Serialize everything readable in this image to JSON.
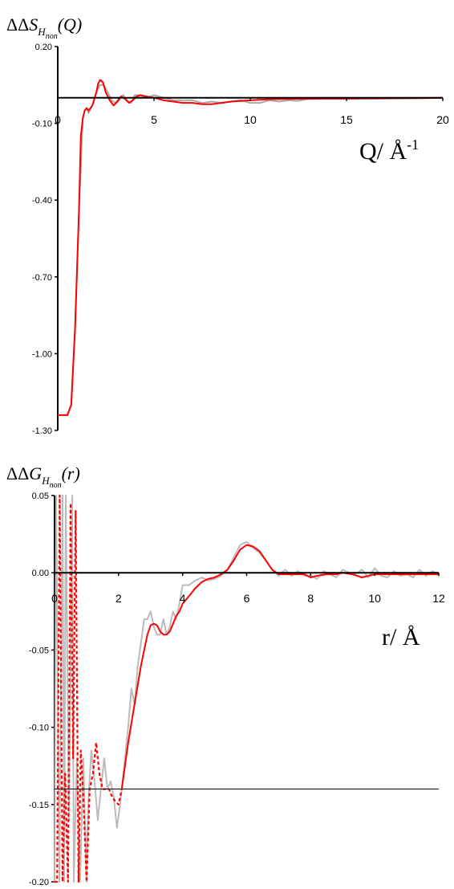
{
  "chart_data": [
    {
      "type": "line",
      "ylabel": {
        "delta": "ΔΔ",
        "symbol": "S",
        "sub": "H",
        "subsub": "non",
        "arg": "(Q)"
      },
      "xlabel": {
        "main": "Q/ Å",
        "sup": "-1"
      },
      "xlim": [
        0,
        20
      ],
      "ylim": [
        -1.3,
        0.2
      ],
      "xticks": [
        0,
        5,
        10,
        15,
        20
      ],
      "xtick_labels": [
        "0",
        "5",
        "10",
        "15",
        "20"
      ],
      "yticks": [
        0.2,
        -0.1,
        -0.4,
        -0.7,
        -1.0,
        -1.3
      ],
      "ytick_labels": [
        "0.20",
        "-0.10",
        "-0.40",
        "-0.70",
        "-1.00",
        "-1.30"
      ],
      "reference_line_y": 0.0,
      "series": [
        {
          "color": "#aaaaaa",
          "style": "solid",
          "x": [
            0,
            0.5,
            0.7,
            0.9,
            1.1,
            1.3,
            1.4,
            1.5,
            1.6,
            1.8,
            2.0,
            2.2,
            2.4,
            2.6,
            2.8,
            3.0,
            3.2,
            3.4,
            3.6,
            3.8,
            4.0,
            4.3,
            4.6,
            5.0,
            5.5,
            6.0,
            6.5,
            7.0,
            7.5,
            8.0,
            8.5,
            9.0,
            9.5,
            10.0,
            10.5,
            11.0,
            11.5,
            12.0,
            12.5,
            13.0,
            14.0,
            15.0,
            16.0,
            17.0,
            18.0,
            19.0,
            20.0
          ],
          "y": [
            -1.24,
            -1.24,
            -1.2,
            -0.9,
            -0.45,
            -0.08,
            -0.05,
            -0.04,
            -0.06,
            -0.03,
            0.02,
            0.05,
            0.05,
            0.02,
            -0.01,
            -0.02,
            0.0,
            0.01,
            -0.01,
            -0.02,
            0.01,
            0.01,
            0.0,
            0.01,
            0.0,
            -0.01,
            -0.01,
            -0.01,
            -0.02,
            -0.015,
            -0.02,
            -0.015,
            -0.01,
            -0.02,
            -0.02,
            -0.01,
            -0.015,
            -0.01,
            -0.012,
            -0.005,
            -0.005,
            -0.005,
            -0.005,
            -0.003,
            -0.003,
            -0.002,
            0.0
          ]
        },
        {
          "color": "#ff0000",
          "style": "solid",
          "x": [
            0,
            0.5,
            0.7,
            0.9,
            1.1,
            1.2,
            1.3,
            1.4,
            1.5,
            1.6,
            1.8,
            2.0,
            2.1,
            2.2,
            2.35,
            2.5,
            2.7,
            2.9,
            3.1,
            3.3,
            3.5,
            3.7,
            3.9,
            4.1,
            4.3,
            4.6,
            5.0,
            5.5,
            6.0,
            6.5,
            7.0,
            7.5,
            8.0,
            8.5,
            9.0,
            9.5,
            10.0,
            10.5,
            11.0,
            12.0,
            13.0,
            14.0,
            15.0,
            16.0,
            17.0,
            18.0,
            19.0,
            20.0
          ],
          "y": [
            -1.24,
            -1.24,
            -1.2,
            -0.9,
            -0.45,
            -0.15,
            -0.08,
            -0.05,
            -0.04,
            -0.05,
            -0.03,
            0.02,
            0.055,
            0.07,
            0.06,
            0.02,
            -0.01,
            -0.03,
            -0.015,
            0.005,
            -0.005,
            -0.02,
            -0.01,
            0.005,
            0.01,
            0.005,
            0.0,
            -0.01,
            -0.015,
            -0.02,
            -0.02,
            -0.025,
            -0.025,
            -0.02,
            -0.015,
            -0.012,
            -0.01,
            -0.008,
            -0.006,
            -0.005,
            -0.004,
            -0.003,
            -0.003,
            -0.002,
            -0.002,
            -0.001,
            -0.001,
            0.0
          ]
        }
      ]
    },
    {
      "type": "line",
      "ylabel": {
        "delta": "ΔΔ",
        "symbol": "G",
        "sub": "H",
        "subsub": "non",
        "arg": "(r)"
      },
      "xlabel": {
        "main": "r/ Å",
        "sup": ""
      },
      "xlim": [
        0,
        12
      ],
      "ylim": [
        -0.2,
        0.05
      ],
      "xticks": [
        0,
        2,
        4,
        6,
        8,
        10,
        12
      ],
      "xtick_labels": [
        "0",
        "2",
        "4",
        "6",
        "8",
        "10",
        "12"
      ],
      "yticks": [
        0.05,
        0.0,
        -0.05,
        -0.1,
        -0.15,
        -0.2
      ],
      "ytick_labels": [
        "0.05",
        "0.00",
        "-0.05",
        "-0.10",
        "-0.15",
        "-0.20"
      ],
      "reference_line_y": 0.0,
      "horizontal_line_y": -0.14,
      "series": [
        {
          "color": "#bbbbbb",
          "style": "solid",
          "x": [
            0.0,
            0.05,
            0.15,
            0.25,
            0.3,
            0.35,
            0.45,
            0.55,
            0.6,
            0.7,
            0.8,
            0.9,
            1.0,
            1.05,
            1.15,
            1.25,
            1.35,
            1.45,
            1.55,
            1.65,
            1.75,
            1.85,
            1.95,
            2.05,
            2.1,
            2.2,
            2.3,
            2.4,
            2.5,
            2.6,
            2.7,
            2.8,
            2.9,
            3.0,
            3.1,
            3.2,
            3.3,
            3.4,
            3.5,
            3.6,
            3.7,
            3.8,
            3.9,
            4.0,
            4.2,
            4.4,
            4.6,
            4.8,
            5.0,
            5.2,
            5.4,
            5.6,
            5.8,
            6.0,
            6.2,
            6.4,
            6.6,
            6.8,
            7.0,
            7.2,
            7.4,
            7.6,
            7.8,
            8.0,
            8.2,
            8.4,
            8.6,
            8.8,
            9.0,
            9.2,
            9.4,
            9.6,
            9.8,
            10.0,
            10.2,
            10.4,
            10.6,
            10.8,
            11.0,
            11.2,
            11.4,
            11.6,
            11.8,
            12.0
          ],
          "y": [
            -0.2,
            0.05,
            -0.2,
            0.05,
            -0.2,
            0.05,
            -0.16,
            0.05,
            -0.2,
            -0.12,
            -0.2,
            -0.12,
            -0.2,
            -0.15,
            -0.115,
            -0.135,
            -0.16,
            -0.14,
            -0.12,
            -0.14,
            -0.135,
            -0.145,
            -0.165,
            -0.15,
            -0.14,
            -0.12,
            -0.1,
            -0.075,
            -0.085,
            -0.06,
            -0.045,
            -0.03,
            -0.03,
            -0.025,
            -0.035,
            -0.04,
            -0.04,
            -0.03,
            -0.04,
            -0.035,
            -0.025,
            -0.03,
            -0.02,
            -0.008,
            -0.008,
            -0.005,
            -0.003,
            -0.005,
            -0.004,
            -0.002,
            0.002,
            0.01,
            0.018,
            0.02,
            0.016,
            0.013,
            0.008,
            0.002,
            -0.002,
            0.002,
            -0.002,
            0.001,
            -0.002,
            -0.002,
            -0.004,
            0.001,
            -0.001,
            -0.003,
            0.002,
            0.0,
            -0.001,
            0.002,
            -0.003,
            0.003,
            -0.002,
            -0.003,
            0.001,
            -0.002,
            -0.001,
            -0.003,
            0.002,
            -0.002,
            0.001,
            -0.001
          ]
        },
        {
          "color": "#ff0000",
          "style": "solid",
          "x": [
            2.1,
            2.3,
            2.5,
            2.7,
            2.9,
            3.0,
            3.1,
            3.2,
            3.3,
            3.4,
            3.5,
            3.6,
            3.7,
            3.8,
            3.9,
            4.0,
            4.2,
            4.4,
            4.6,
            4.8,
            5.0,
            5.2,
            5.4,
            5.6,
            5.8,
            6.0,
            6.2,
            6.4,
            6.6,
            6.8,
            7.0,
            7.2,
            7.5,
            7.8,
            8.0,
            8.2,
            8.5,
            8.8,
            9.0,
            9.3,
            9.6,
            9.8,
            10.0,
            10.3,
            10.6,
            11.0,
            11.4,
            12.0
          ],
          "y": [
            -0.14,
            -0.11,
            -0.085,
            -0.06,
            -0.04,
            -0.034,
            -0.033,
            -0.034,
            -0.038,
            -0.04,
            -0.04,
            -0.038,
            -0.033,
            -0.028,
            -0.025,
            -0.02,
            -0.015,
            -0.01,
            -0.006,
            -0.004,
            -0.003,
            -0.001,
            0.002,
            0.008,
            0.015,
            0.018,
            0.017,
            0.014,
            0.008,
            0.002,
            -0.001,
            -0.001,
            -0.001,
            -0.001,
            -0.003,
            -0.002,
            -0.001,
            -0.001,
            0.0,
            -0.001,
            -0.003,
            -0.002,
            -0.001,
            -0.001,
            -0.001,
            -0.001,
            -0.001,
            -0.001
          ]
        },
        {
          "color": "#ff0000",
          "style": "dotted",
          "x": [
            0.0,
            0.08,
            0.16,
            0.25,
            0.33,
            0.42,
            0.5,
            0.58,
            0.66,
            0.75,
            0.82,
            0.9,
            1.0,
            1.1,
            1.2,
            1.3,
            1.4,
            1.5,
            1.6,
            1.7,
            1.8,
            1.9,
            2.0,
            2.1
          ],
          "y": [
            -0.2,
            -0.2,
            0.05,
            -0.2,
            -0.13,
            -0.2,
            0.045,
            -0.12,
            0.04,
            -0.2,
            -0.115,
            -0.145,
            -0.2,
            -0.14,
            -0.13,
            -0.11,
            -0.13,
            -0.14,
            -0.14,
            -0.14,
            -0.145,
            -0.148,
            -0.15,
            -0.14
          ]
        }
      ]
    }
  ]
}
